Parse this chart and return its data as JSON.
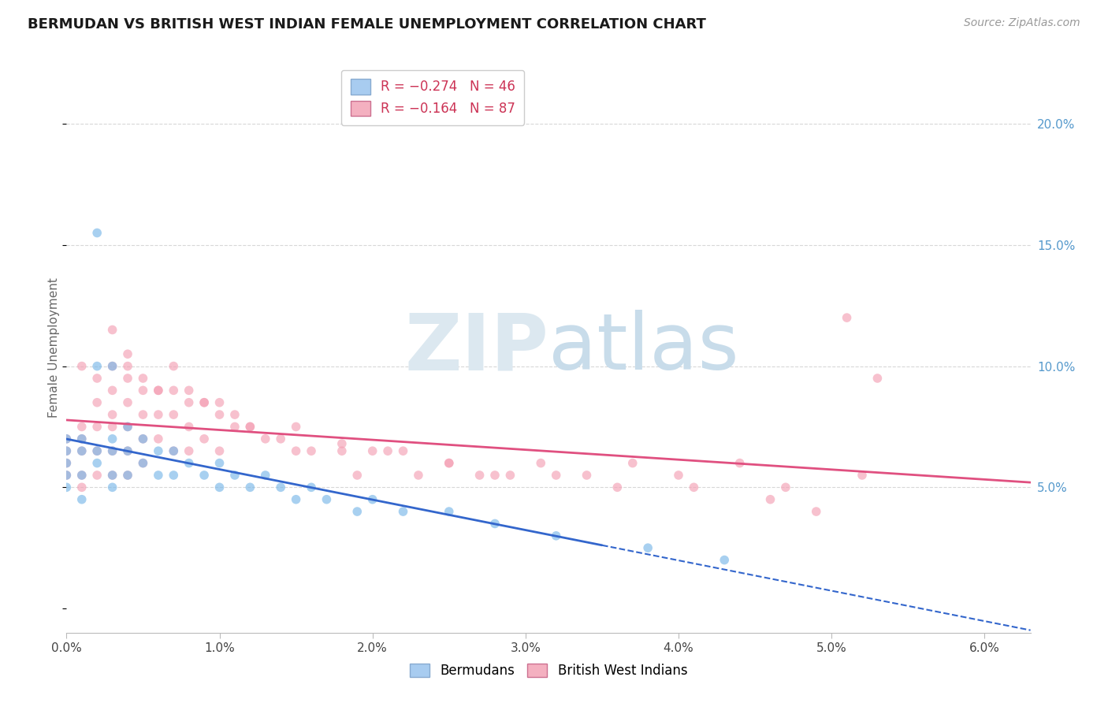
{
  "title": "BERMUDAN VS BRITISH WEST INDIAN FEMALE UNEMPLOYMENT CORRELATION CHART",
  "source": "Source: ZipAtlas.com",
  "ylabel": "Female Unemployment",
  "y_ticks": [
    0.05,
    0.1,
    0.15,
    0.2
  ],
  "y_tick_labels": [
    "5.0%",
    "10.0%",
    "15.0%",
    "20.0%"
  ],
  "x_ticks": [
    0.0,
    0.01,
    0.02,
    0.03,
    0.04,
    0.05,
    0.06
  ],
  "x_tick_labels": [
    "0.0%",
    "1.0%",
    "2.0%",
    "3.0%",
    "4.0%",
    "5.0%",
    "6.0%"
  ],
  "x_range": [
    0.0,
    0.063
  ],
  "y_range": [
    -0.01,
    0.225
  ],
  "bermudans_color": "#7ab8e8",
  "bwi_color": "#f4a0b4",
  "trendline_bermudans_color": "#3366cc",
  "trendline_bwi_color": "#e05080",
  "legend_blue_patch": "#a8ccf0",
  "legend_pink_patch": "#f4b0c0",
  "grid_color": "#d8d8d8",
  "watermark_zip_color": "#dce8f0",
  "watermark_atlas_color": "#c8dcea",
  "background_color": "#ffffff",
  "berm_x": [
    0.0,
    0.0,
    0.0,
    0.0,
    0.0,
    0.001,
    0.001,
    0.001,
    0.001,
    0.002,
    0.002,
    0.002,
    0.003,
    0.003,
    0.003,
    0.003,
    0.004,
    0.004,
    0.004,
    0.005,
    0.005,
    0.006,
    0.006,
    0.007,
    0.007,
    0.008,
    0.009,
    0.01,
    0.01,
    0.011,
    0.012,
    0.013,
    0.014,
    0.015,
    0.016,
    0.017,
    0.019,
    0.02,
    0.022,
    0.025,
    0.028,
    0.032,
    0.038,
    0.043,
    0.002,
    0.003
  ],
  "berm_y": [
    0.065,
    0.07,
    0.06,
    0.055,
    0.05,
    0.07,
    0.065,
    0.055,
    0.045,
    0.065,
    0.06,
    0.155,
    0.07,
    0.065,
    0.055,
    0.05,
    0.075,
    0.065,
    0.055,
    0.07,
    0.06,
    0.065,
    0.055,
    0.065,
    0.055,
    0.06,
    0.055,
    0.06,
    0.05,
    0.055,
    0.05,
    0.055,
    0.05,
    0.045,
    0.05,
    0.045,
    0.04,
    0.045,
    0.04,
    0.04,
    0.035,
    0.03,
    0.025,
    0.02,
    0.1,
    0.1
  ],
  "bwi_x": [
    0.0,
    0.0,
    0.0,
    0.0,
    0.001,
    0.001,
    0.001,
    0.001,
    0.001,
    0.002,
    0.002,
    0.002,
    0.002,
    0.003,
    0.003,
    0.003,
    0.003,
    0.003,
    0.004,
    0.004,
    0.004,
    0.004,
    0.004,
    0.005,
    0.005,
    0.005,
    0.005,
    0.006,
    0.006,
    0.006,
    0.007,
    0.007,
    0.007,
    0.008,
    0.008,
    0.008,
    0.009,
    0.009,
    0.01,
    0.01,
    0.011,
    0.012,
    0.013,
    0.014,
    0.015,
    0.016,
    0.018,
    0.019,
    0.02,
    0.022,
    0.023,
    0.025,
    0.027,
    0.029,
    0.031,
    0.034,
    0.037,
    0.04,
    0.044,
    0.047,
    0.049,
    0.051,
    0.053,
    0.001,
    0.002,
    0.003,
    0.004,
    0.005,
    0.006,
    0.007,
    0.008,
    0.009,
    0.01,
    0.011,
    0.012,
    0.015,
    0.018,
    0.021,
    0.025,
    0.028,
    0.032,
    0.036,
    0.041,
    0.046,
    0.052,
    0.003,
    0.004
  ],
  "bwi_y": [
    0.065,
    0.07,
    0.06,
    0.055,
    0.075,
    0.07,
    0.065,
    0.055,
    0.05,
    0.085,
    0.075,
    0.065,
    0.055,
    0.09,
    0.08,
    0.075,
    0.065,
    0.055,
    0.095,
    0.085,
    0.075,
    0.065,
    0.055,
    0.09,
    0.08,
    0.07,
    0.06,
    0.09,
    0.08,
    0.07,
    0.09,
    0.08,
    0.065,
    0.085,
    0.075,
    0.065,
    0.085,
    0.07,
    0.08,
    0.065,
    0.075,
    0.075,
    0.07,
    0.07,
    0.065,
    0.065,
    0.065,
    0.055,
    0.065,
    0.065,
    0.055,
    0.06,
    0.055,
    0.055,
    0.06,
    0.055,
    0.06,
    0.055,
    0.06,
    0.05,
    0.04,
    0.12,
    0.095,
    0.1,
    0.095,
    0.1,
    0.1,
    0.095,
    0.09,
    0.1,
    0.09,
    0.085,
    0.085,
    0.08,
    0.075,
    0.075,
    0.068,
    0.065,
    0.06,
    0.055,
    0.055,
    0.05,
    0.05,
    0.045,
    0.055,
    0.115,
    0.105
  ]
}
